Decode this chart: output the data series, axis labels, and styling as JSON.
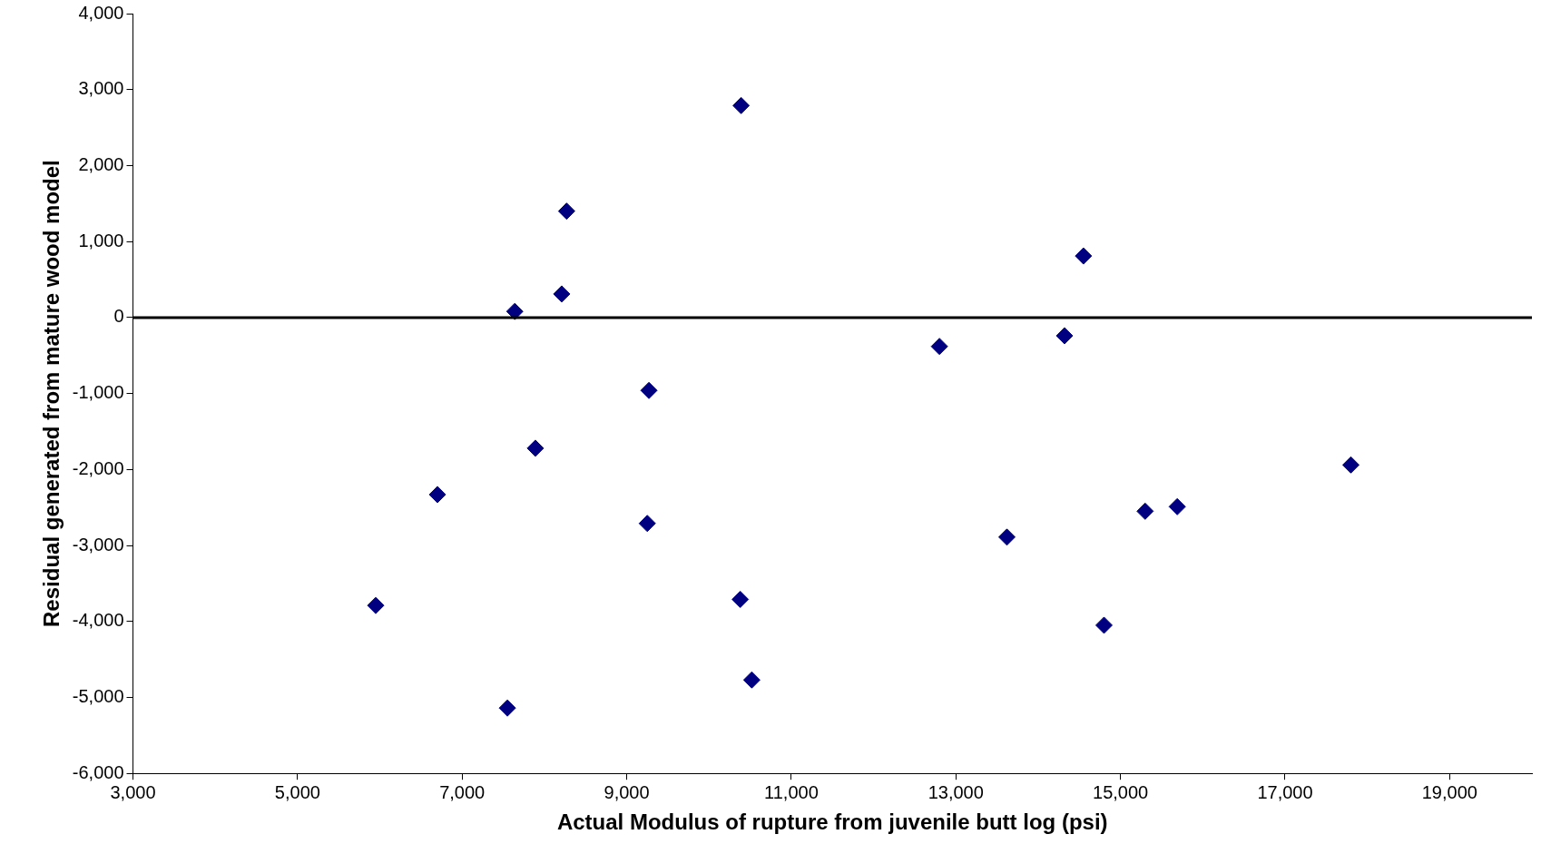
{
  "chart_data": {
    "type": "scatter",
    "xlabel": "Actual Modulus of rupture from juvenile butt log (psi)",
    "ylabel": "Residual generated from mature wood model",
    "x": [
      5950,
      6700,
      7550,
      7640,
      7890,
      8210,
      8270,
      9250,
      9270,
      10390,
      10380,
      10520,
      12800,
      13620,
      14320,
      14550,
      14800,
      15300,
      15690,
      17800
    ],
    "series": [
      {
        "color": "#000080",
        "values": [
          -3790,
          -2330,
          -5140,
          80,
          -1720,
          310,
          1400,
          -2710,
          -960,
          2790,
          -3710,
          -4770,
          -380,
          -2890,
          -240,
          810,
          -4050,
          -2550,
          -2490,
          -1940
        ]
      }
    ],
    "xlim": [
      3000,
      20000
    ],
    "xticks": [
      {
        "value": 3000,
        "label": "3,000"
      },
      {
        "value": 5000,
        "label": "5,000"
      },
      {
        "value": 7000,
        "label": "7,000"
      },
      {
        "value": 9000,
        "label": "9,000"
      },
      {
        "value": 11000,
        "label": "11,000"
      },
      {
        "value": 13000,
        "label": "13,000"
      },
      {
        "value": 15000,
        "label": "15,000"
      },
      {
        "value": 17000,
        "label": "17,000"
      },
      {
        "value": 19000,
        "label": "19,000"
      }
    ],
    "ylim": [
      -6000,
      4000
    ],
    "yticks": [
      {
        "value": -6000,
        "label": "-6,000"
      },
      {
        "value": -5000,
        "label": "-5,000"
      },
      {
        "value": -4000,
        "label": "-4,000"
      },
      {
        "value": -3000,
        "label": "-3,000"
      },
      {
        "value": -2000,
        "label": "-2,000"
      },
      {
        "value": -1000,
        "label": "-1,000"
      },
      0,
      {
        "value": 1000,
        "label": "1,000"
      },
      {
        "value": 2000,
        "label": "2,000"
      },
      {
        "value": 3000,
        "label": "3,000"
      },
      {
        "value": 4000,
        "label": "4,000"
      }
    ],
    "ref_lines": [
      {
        "axis": "y",
        "value": 0,
        "color": "#000000"
      }
    ],
    "marker": "diamond",
    "grid": false,
    "legend": false
  }
}
